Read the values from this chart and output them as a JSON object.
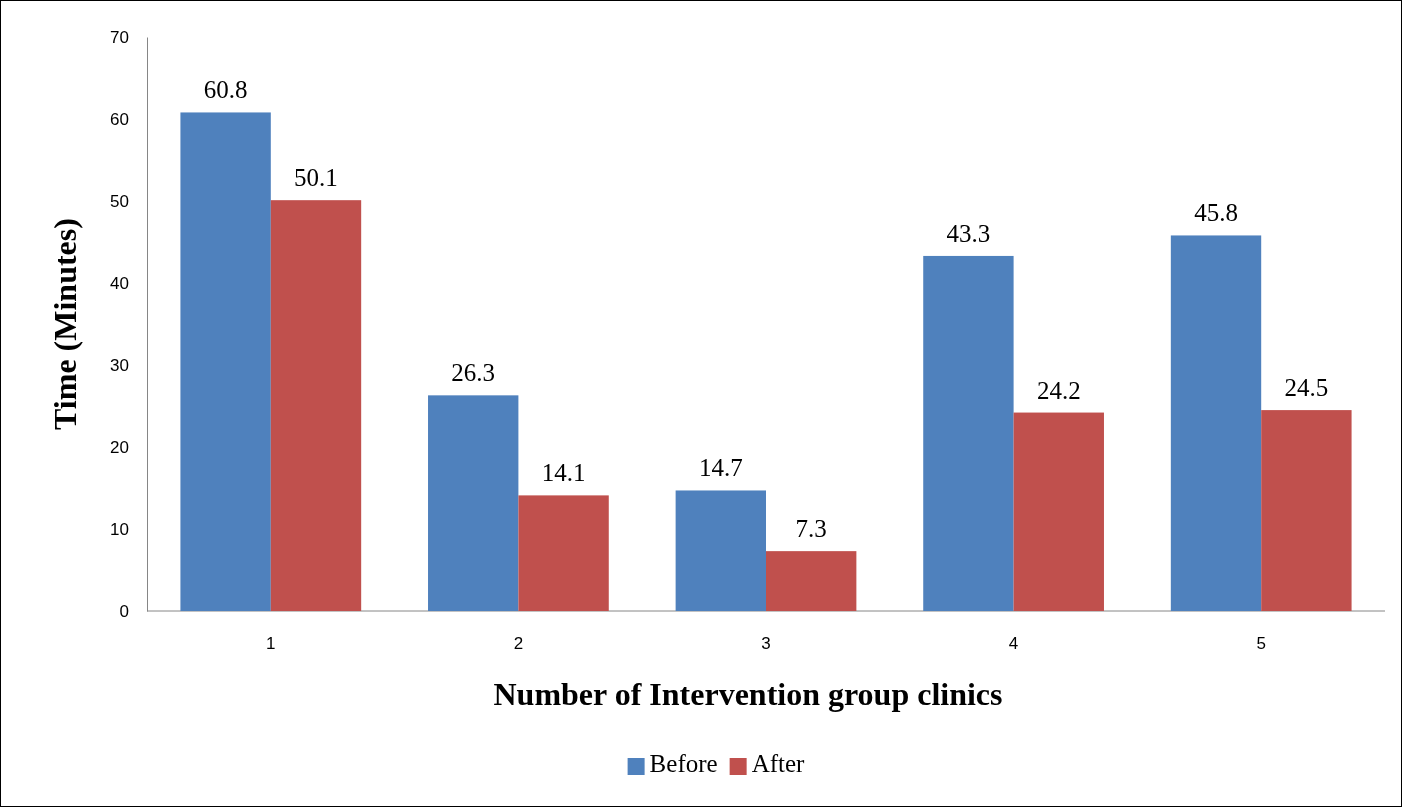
{
  "chart_data": {
    "type": "bar",
    "xlabel": "Number of Intervention group clinics",
    "ylabel": "Time (Minutes)",
    "categories": [
      "1",
      "2",
      "3",
      "4",
      "5"
    ],
    "series": [
      {
        "name": "Before",
        "color": "#4f81bd",
        "values": [
          60.8,
          26.3,
          14.7,
          43.3,
          45.8
        ]
      },
      {
        "name": "After",
        "color": "#c0504d",
        "values": [
          50.1,
          14.1,
          7.3,
          24.2,
          24.5
        ]
      }
    ],
    "ylim": [
      0,
      70
    ],
    "yticks": [
      0,
      10,
      20,
      30,
      40,
      50,
      60,
      70
    ],
    "grid": false,
    "legend": "bottom",
    "data_labels": true
  }
}
